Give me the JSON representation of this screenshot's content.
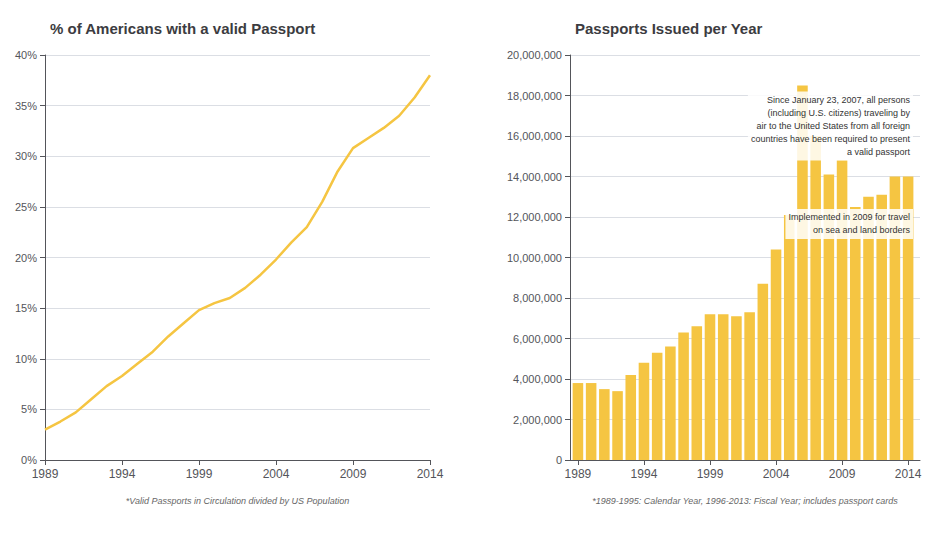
{
  "chart_data": [
    {
      "type": "line",
      "title": "% of Americans with a valid Passport",
      "footnote": "*Valid Passports in Circulation divided by US Population",
      "x": [
        1989,
        1990,
        1991,
        1992,
        1993,
        1994,
        1995,
        1996,
        1997,
        1998,
        1999,
        2000,
        2001,
        2002,
        2003,
        2004,
        2005,
        2006,
        2007,
        2008,
        2009,
        2010,
        2011,
        2012,
        2013,
        2014
      ],
      "values": [
        0.03,
        0.038,
        0.047,
        0.06,
        0.073,
        0.083,
        0.095,
        0.107,
        0.122,
        0.135,
        0.148,
        0.155,
        0.16,
        0.17,
        0.183,
        0.198,
        0.215,
        0.23,
        0.255,
        0.285,
        0.308,
        0.318,
        0.328,
        0.34,
        0.358,
        0.38
      ],
      "color": "#f5c542",
      "xlim": [
        1989,
        2014
      ],
      "xticks": [
        1989,
        1994,
        1999,
        2004,
        2009,
        2014
      ],
      "ylim": [
        0,
        0.4
      ],
      "yticks": [
        {
          "value": 0,
          "label": "0%"
        },
        {
          "value": 0.05,
          "label": "5%"
        },
        {
          "value": 0.1,
          "label": "10%"
        },
        {
          "value": 0.15,
          "label": "15%"
        },
        {
          "value": 0.2,
          "label": "20%"
        },
        {
          "value": 0.25,
          "label": "25%"
        },
        {
          "value": 0.3,
          "label": "30%"
        },
        {
          "value": 0.35,
          "label": "35%"
        },
        {
          "value": 0.4,
          "label": "40%"
        }
      ],
      "grid": true
    },
    {
      "type": "bar",
      "title": "Passports Issued per Year",
      "footnote": "*1989-1995: Calendar Year, 1996-2013: Fiscal Year; includes passport cards",
      "annotations": [
        "Since January 23, 2007, all persons\n(including U.S. citizens) traveling by\nair to the United States from all foreign\ncountries have been required to present\na valid passport",
        "Implemented in 2009 for travel\non sea and land borders"
      ],
      "x": [
        1989,
        1990,
        1991,
        1992,
        1993,
        1994,
        1995,
        1996,
        1997,
        1998,
        1999,
        2000,
        2001,
        2002,
        2003,
        2004,
        2005,
        2006,
        2007,
        2008,
        2009,
        2010,
        2011,
        2012,
        2013,
        2014
      ],
      "values": [
        3800000,
        3800000,
        3500000,
        3400000,
        4200000,
        4800000,
        5300000,
        5600000,
        6300000,
        6600000,
        7200000,
        7200000,
        7100000,
        7300000,
        8700000,
        10400000,
        12100000,
        18500000,
        16000000,
        14100000,
        14800000,
        12500000,
        13000000,
        13100000,
        14000000,
        14000000
      ],
      "color": "#f5c542",
      "xlim": [
        1988.4,
        2014.9
      ],
      "xticks": [
        1989,
        1994,
        1999,
        2004,
        2009,
        2014
      ],
      "ylim": [
        0,
        20000000
      ],
      "yticks": [
        0,
        {
          "value": 2000000,
          "label": "2,000,000"
        },
        {
          "value": 4000000,
          "label": "4,000,000"
        },
        {
          "value": 6000000,
          "label": "6,000,000"
        },
        {
          "value": 8000000,
          "label": "8,000,000"
        },
        {
          "value": 10000000,
          "label": "10,000,000"
        },
        {
          "value": 12000000,
          "label": "12,000,000"
        },
        {
          "value": 14000000,
          "label": "14,000,000"
        },
        {
          "value": 16000000,
          "label": "16,000,000"
        },
        {
          "value": 18000000,
          "label": "18,000,000"
        },
        {
          "value": 20000000,
          "label": "20,000,000"
        }
      ],
      "grid": true
    }
  ]
}
